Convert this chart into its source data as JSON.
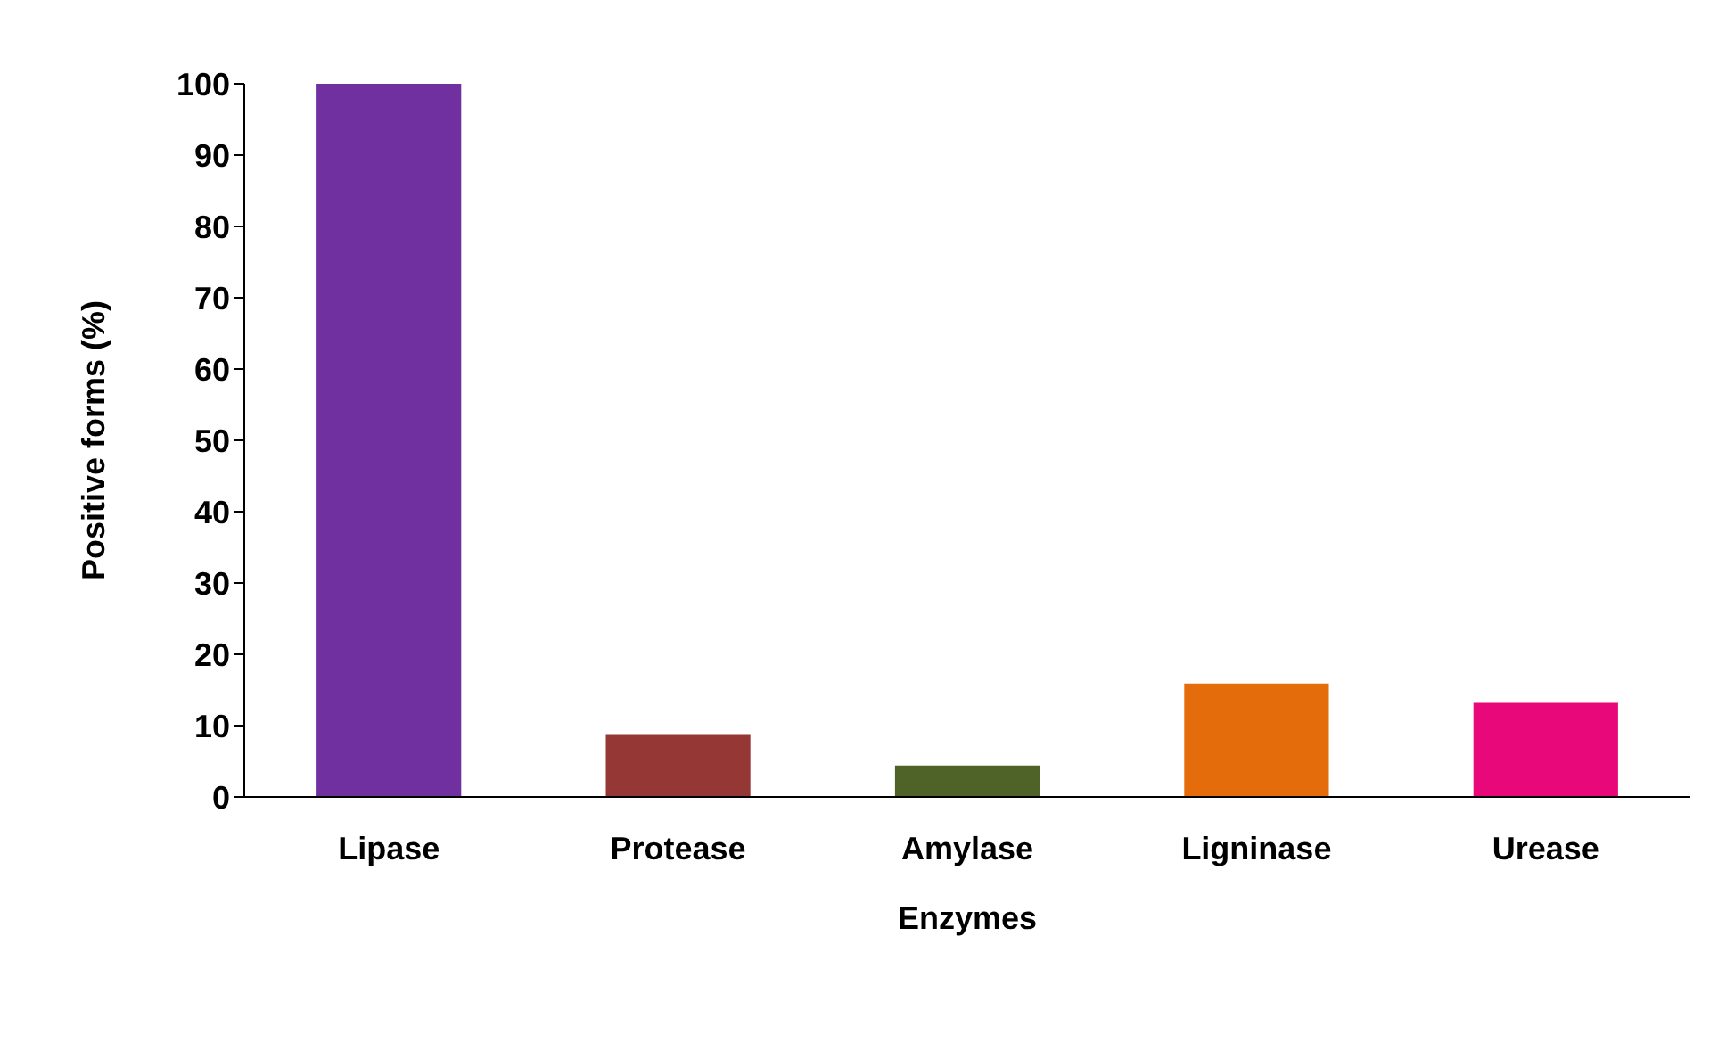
{
  "chart_data": {
    "type": "bar",
    "xlabel": "Enzymes",
    "ylabel": "Positive forms (%)",
    "categories": [
      "Lipase",
      "Protease",
      "Amylase",
      "Ligninase",
      "Urease"
    ],
    "values": [
      100,
      8.8,
      4.4,
      15.9,
      13.2
    ],
    "colors": [
      "#7030a0",
      "#953735",
      "#4f6228",
      "#e46c0a",
      "#e8087a"
    ],
    "ylim": [
      0,
      100
    ],
    "yticks": [
      0,
      10,
      20,
      30,
      40,
      50,
      60,
      70,
      80,
      90,
      100
    ],
    "grid": false,
    "legend": false
  }
}
